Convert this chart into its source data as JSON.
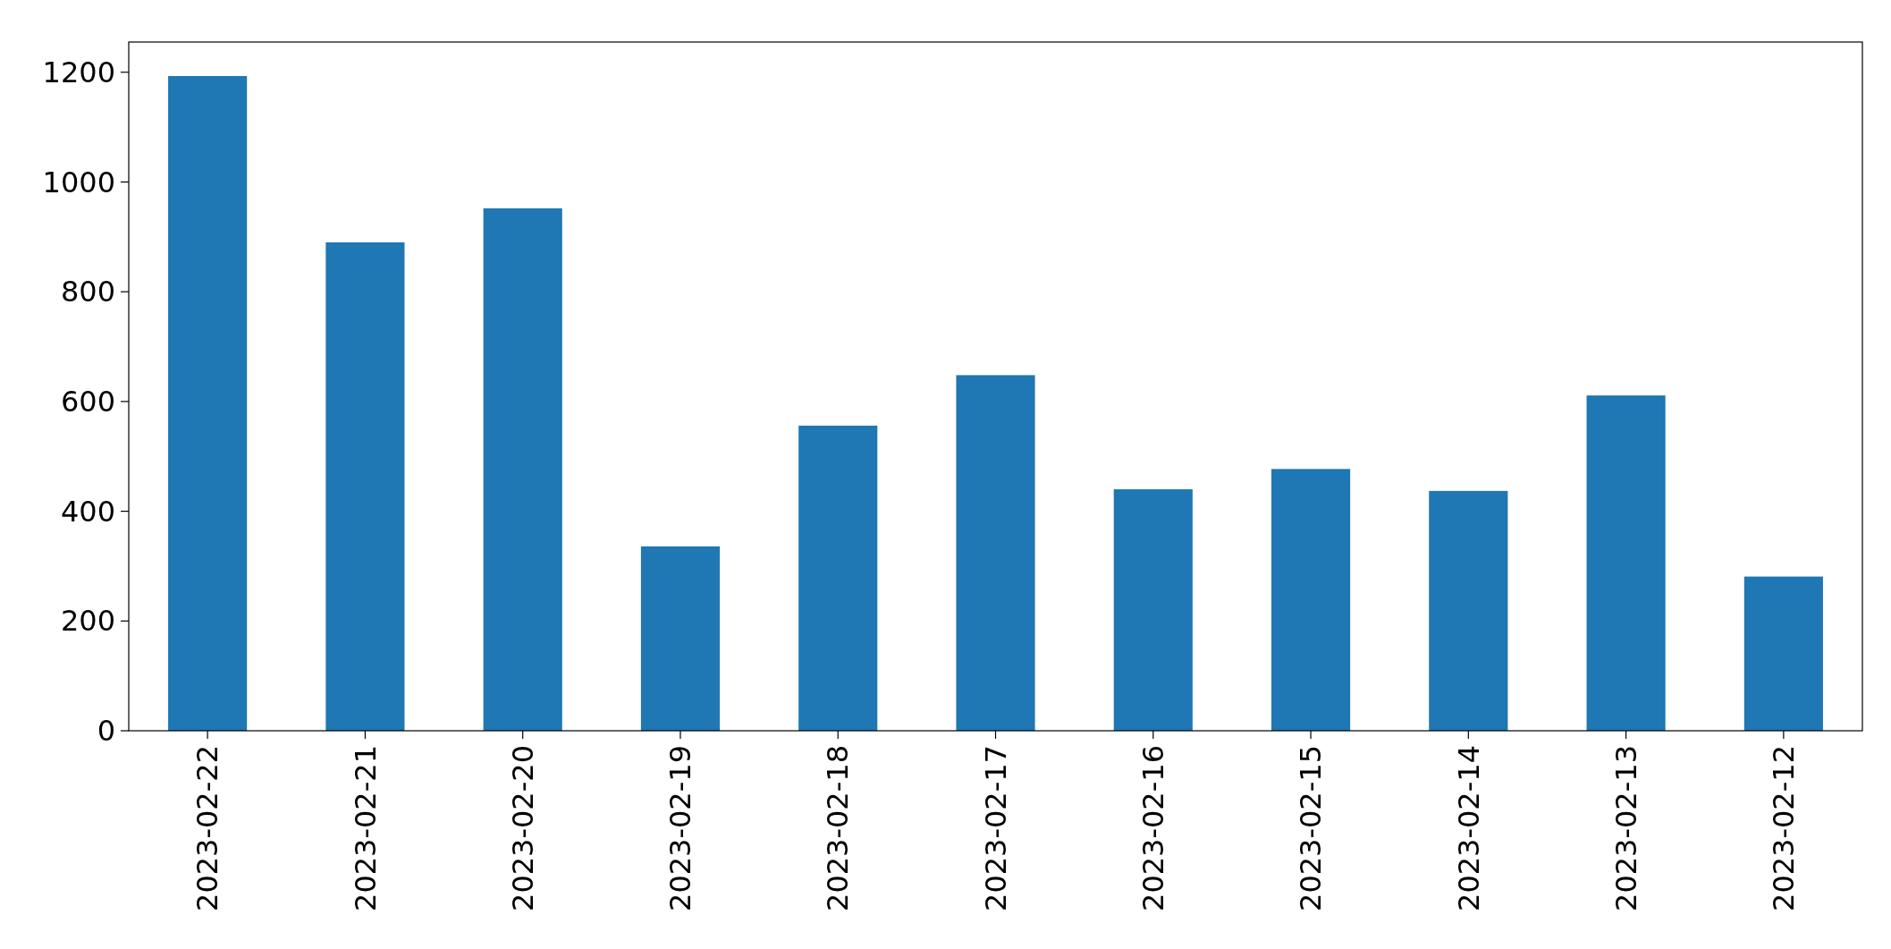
{
  "chart_data": {
    "type": "bar",
    "categories": [
      "2023-02-22",
      "2023-02-21",
      "2023-02-20",
      "2023-02-19",
      "2023-02-18",
      "2023-02-17",
      "2023-02-16",
      "2023-02-15",
      "2023-02-14",
      "2023-02-13",
      "2023-02-12"
    ],
    "values": [
      1193,
      890,
      952,
      336,
      556,
      648,
      440,
      477,
      437,
      611,
      281
    ],
    "color": "#1f77b4",
    "ylim": [
      0,
      1255
    ],
    "yticks": [
      0,
      200,
      400,
      600,
      800,
      1000,
      1200
    ],
    "grid": false
  }
}
